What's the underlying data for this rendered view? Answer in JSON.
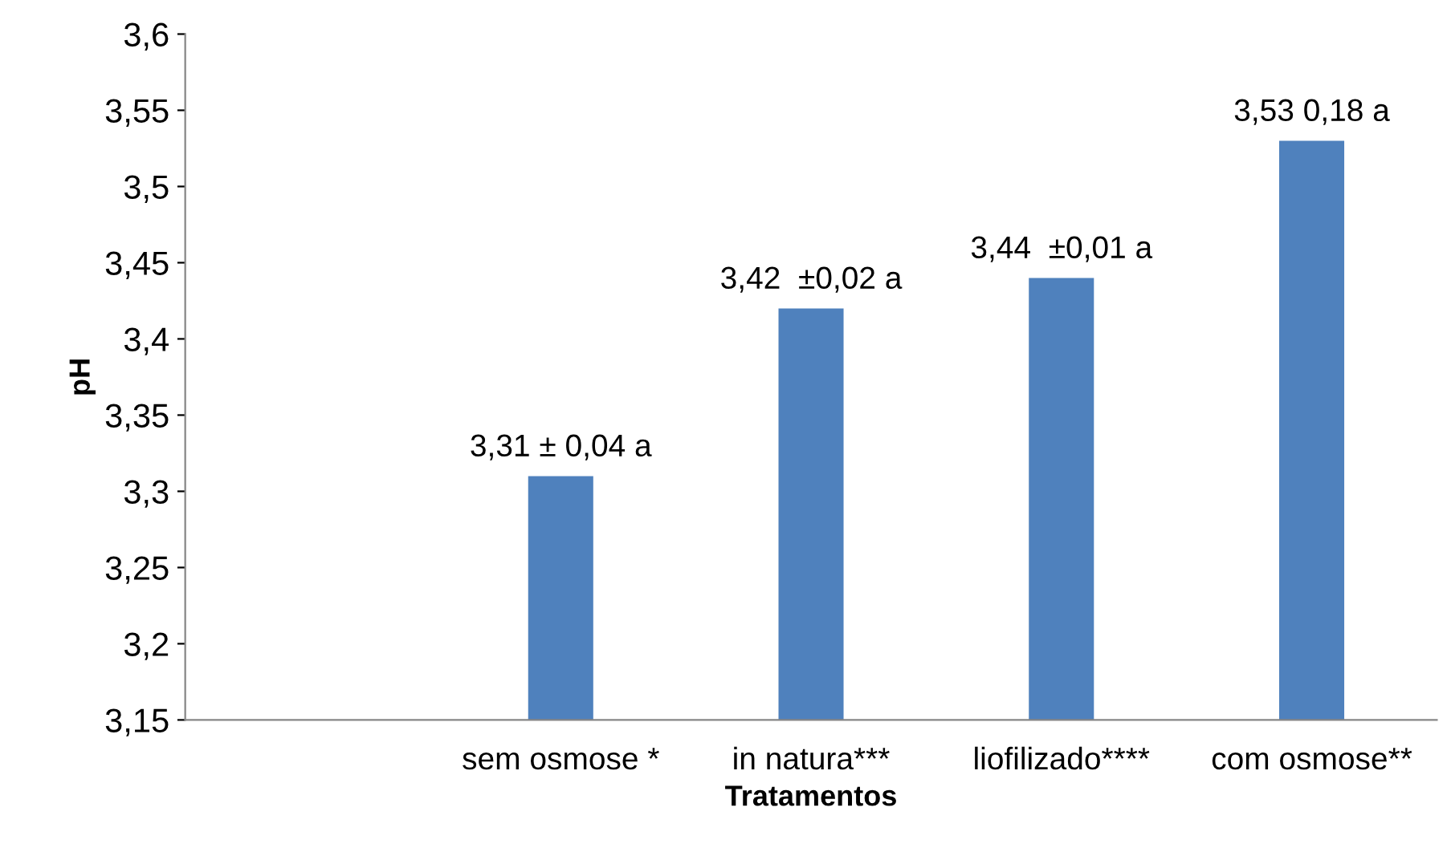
{
  "chart_data": {
    "type": "bar",
    "xlabel": "Tratamentos",
    "ylabel": "pH",
    "categories": [
      null,
      "sem osmose *",
      "in natura***",
      "liofilizado****",
      "com osmose**"
    ],
    "values": [
      null,
      3.31,
      3.42,
      3.44,
      3.53
    ],
    "value_labels": [
      null,
      "3,31 ± 0,04 a",
      "3,42  ±0,02 a",
      "3,44  ±0,01 a",
      "3,53 0,18 a"
    ],
    "color": "#4f81bd",
    "ylim": [
      3.15,
      3.6
    ],
    "yticks": [
      {
        "value": 3.15,
        "label": "3,15"
      },
      {
        "value": 3.2,
        "label": "3,2"
      },
      {
        "value": 3.25,
        "label": "3,25"
      },
      {
        "value": 3.3,
        "label": "3,3"
      },
      {
        "value": 3.35,
        "label": "3,35"
      },
      {
        "value": 3.4,
        "label": "3,4"
      },
      {
        "value": 3.45,
        "label": "3,45"
      },
      {
        "value": 3.5,
        "label": "3,5"
      },
      {
        "value": 3.55,
        "label": "3,55"
      },
      {
        "value": 3.6,
        "label": "3,6"
      }
    ],
    "grid": false,
    "legend": false
  }
}
